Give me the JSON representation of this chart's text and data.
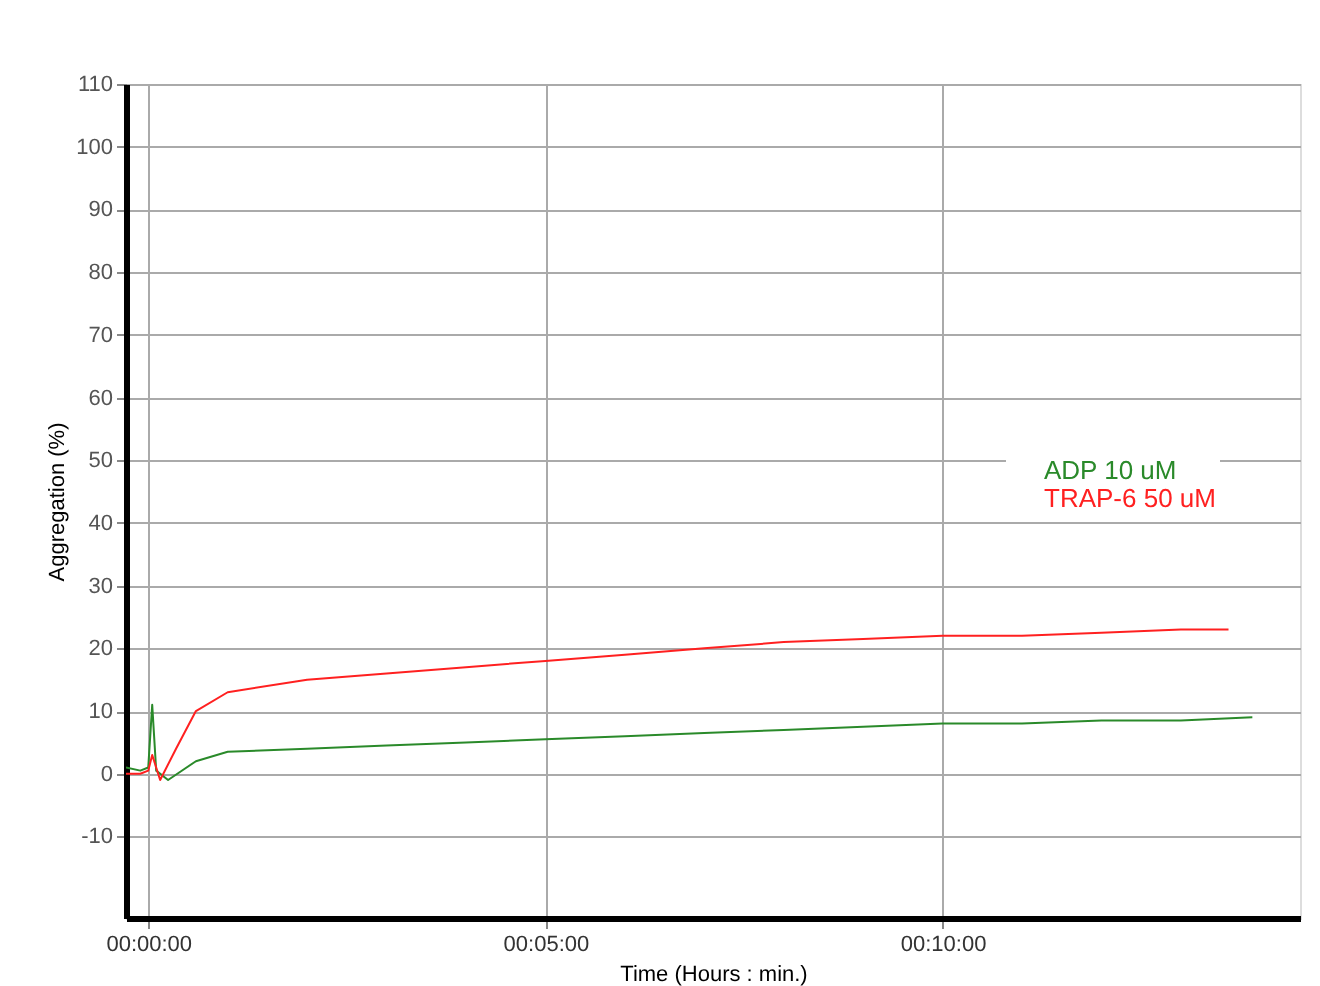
{
  "chart_data": {
    "type": "line",
    "xlabel": "Time (Hours : min.)",
    "ylabel": "Aggregation (%)",
    "xlim": [
      -0.28,
      14.5
    ],
    "xticks": [
      {
        "value": 0,
        "label": "00:00:00"
      },
      {
        "value": 5,
        "label": "00:05:00"
      },
      {
        "value": 10,
        "label": "00:10:00"
      }
    ],
    "ylim": [
      -23,
      110
    ],
    "yticks": [
      -10,
      0,
      10,
      20,
      30,
      40,
      50,
      60,
      70,
      80,
      90,
      100,
      110
    ],
    "grid": true,
    "legend": "right",
    "marker": "none",
    "line_style": "solid",
    "series": [
      {
        "name": "ADP 10 uM",
        "color": "#2a8a2a",
        "x": [
          -0.28,
          -0.1,
          0,
          0.05,
          0.1,
          0.25,
          0.6,
          1,
          2,
          3,
          4,
          5,
          6,
          7,
          8,
          9,
          10,
          11,
          12,
          13,
          13.9
        ],
        "values": [
          1,
          0.5,
          1,
          11,
          0.5,
          -1,
          2,
          3.5,
          4,
          4.5,
          5,
          5.5,
          6,
          6.5,
          7,
          7.5,
          8,
          8,
          8.5,
          8.5,
          9
        ]
      },
      {
        "name": "TRAP-6 50 uM",
        "color": "#ff2020",
        "x": [
          -0.28,
          -0.1,
          0,
          0.05,
          0.15,
          0.35,
          0.6,
          1,
          2,
          3,
          4,
          5,
          6,
          7,
          8,
          9,
          10,
          11,
          12,
          13,
          13.6
        ],
        "values": [
          0,
          0,
          0.5,
          3,
          -1,
          4,
          10,
          13,
          15,
          16,
          17,
          18,
          19,
          20,
          21,
          21.5,
          22,
          22,
          22.5,
          23,
          23
        ]
      }
    ]
  }
}
